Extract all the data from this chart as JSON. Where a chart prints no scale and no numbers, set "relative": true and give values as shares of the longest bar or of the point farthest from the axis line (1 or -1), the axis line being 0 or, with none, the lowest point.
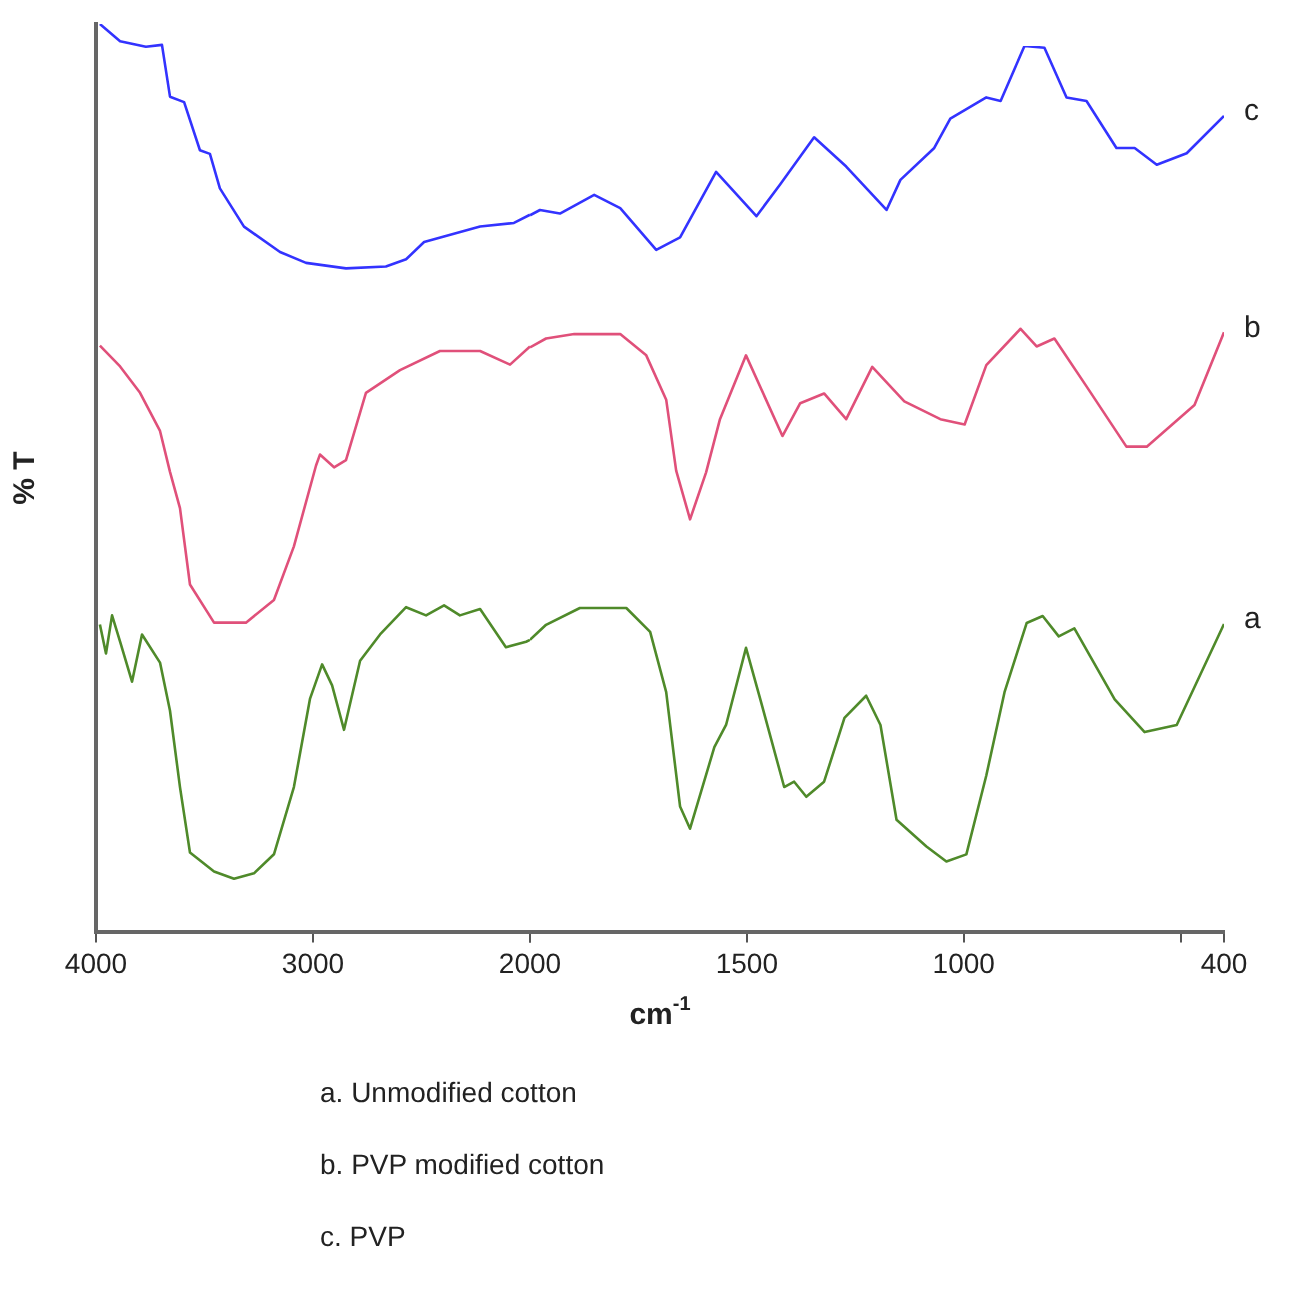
{
  "chart_data": [
    {
      "type": "line",
      "relative": true,
      "ylabel": "% T",
      "xlim": [
        4000,
        2000
      ],
      "xticks": [
        4000,
        3000,
        2000
      ],
      "tick_labels": "x",
      "legend": false,
      "grid": false,
      "marker": "none",
      "line_style": "solid",
      "series": [
        {
          "color": "#4f8a2a",
          "x": [
            3982,
            3954,
            3926,
            3889,
            3834,
            3788,
            3705,
            3659,
            3613,
            3567,
            3456,
            3364,
            3272,
            3180,
            3088,
            3014,
            2958,
            2912,
            2857,
            2783,
            2691,
            2571,
            2479,
            2396,
            2323,
            2230,
            2111,
            2018,
            2000
          ],
          "values": [
            0.339,
            0.307,
            0.349,
            0.32,
            0.276,
            0.328,
            0.297,
            0.244,
            0.16,
            0.088,
            0.067,
            0.059,
            0.065,
            0.086,
            0.16,
            0.257,
            0.295,
            0.272,
            0.223,
            0.299,
            0.328,
            0.358,
            0.349,
            0.36,
            0.349,
            0.356,
            0.314,
            0.32,
            0.322
          ]
        },
        {
          "color": "#e0507a",
          "x": [
            3982,
            3889,
            3797,
            3705,
            3659,
            3613,
            3567,
            3456,
            3309,
            3180,
            3088,
            2986,
            2968,
            2903,
            2848,
            2756,
            2599,
            2415,
            2230,
            2092,
            2000
          ],
          "values": [
            0.646,
            0.623,
            0.594,
            0.552,
            0.507,
            0.467,
            0.383,
            0.341,
            0.341,
            0.366,
            0.425,
            0.514,
            0.526,
            0.512,
            0.52,
            0.594,
            0.619,
            0.64,
            0.64,
            0.625,
            0.645
          ]
        },
        {
          "color": "#3333ff",
          "x": [
            3982,
            3889,
            3770,
            3696,
            3659,
            3594,
            3521,
            3475,
            3429,
            3318,
            3152,
            3032,
            2848,
            2664,
            2571,
            2488,
            2230,
            2074,
            2000
          ],
          "values": [
            1,
            0.981,
            0.975,
            0.977,
            0.92,
            0.914,
            0.861,
            0.857,
            0.819,
            0.777,
            0.749,
            0.737,
            0.731,
            0.733,
            0.741,
            0.76,
            0.777,
            0.781,
            0.79
          ]
        }
      ]
    },
    {
      "type": "line",
      "relative": true,
      "xlabel": "cm$^{-1}$",
      "xlim": [
        2000,
        400
      ],
      "xticks": [
        {
          "value": 2000,
          "label": null
        },
        1500,
        1000,
        {
          "value": 500,
          "label": null
        },
        400
      ],
      "tick_labels": "x",
      "legend": false,
      "grid": false,
      "marker": "none",
      "line_style": "solid",
      "annotations": [
        "a. Unmodified cotton",
        "b. PVP modified cotton",
        "c. PVP"
      ],
      "series": [
        {
          "name": "a",
          "color": "#4f8a2a",
          "x": [
            2000,
            1963,
            1885,
            1778,
            1723,
            1686,
            1654,
            1631,
            1575,
            1548,
            1502,
            1469,
            1414,
            1391,
            1363,
            1322,
            1275,
            1225,
            1192,
            1155,
            1086,
            1040,
            994,
            948,
            906,
            855,
            818,
            781,
            745,
            652,
            583,
            509,
            400
          ],
          "values": [
            0.33,
            0.347,
            0.366,
            0.366,
            0.339,
            0.271,
            0.142,
            0.117,
            0.209,
            0.234,
            0.321,
            0.263,
            0.164,
            0.17,
            0.153,
            0.17,
            0.242,
            0.267,
            0.234,
            0.127,
            0.097,
            0.08,
            0.088,
            0.177,
            0.271,
            0.349,
            0.357,
            0.334,
            0.343,
            0.263,
            0.226,
            0.234,
            0.348
          ]
        },
        {
          "name": "b",
          "color": "#e0507a",
          "x": [
            2000,
            1963,
            1898,
            1792,
            1732,
            1686,
            1663,
            1631,
            1594,
            1562,
            1502,
            1418,
            1377,
            1322,
            1271,
            1211,
            1137,
            1054,
            998,
            948,
            869,
            832,
            791,
            717,
            625,
            578,
            468,
            400
          ],
          "values": [
            0.66,
            0.67,
            0.675,
            0.675,
            0.651,
            0.601,
            0.521,
            0.466,
            0.519,
            0.579,
            0.651,
            0.56,
            0.597,
            0.608,
            0.579,
            0.638,
            0.599,
            0.579,
            0.573,
            0.64,
            0.681,
            0.661,
            0.67,
            0.616,
            0.548,
            0.548,
            0.595,
            0.677
          ]
        },
        {
          "name": "c",
          "color": "#3333ff",
          "x": [
            2000,
            1977,
            1931,
            1852,
            1792,
            1709,
            1654,
            1571,
            1478,
            1423,
            1345,
            1271,
            1178,
            1146,
            1068,
            1031,
            948,
            915,
            860,
            814,
            763,
            717,
            648,
            606,
            555,
            486,
            400
          ],
          "values": [
            0.809,
            0.815,
            0.811,
            0.832,
            0.817,
            0.77,
            0.784,
            0.858,
            0.808,
            0.844,
            0.897,
            0.864,
            0.815,
            0.849,
            0.885,
            0.918,
            0.942,
            0.938,
            1,
            0.998,
            0.942,
            0.938,
            0.885,
            0.885,
            0.866,
            0.879,
            0.921
          ]
        }
      ]
    }
  ]
}
